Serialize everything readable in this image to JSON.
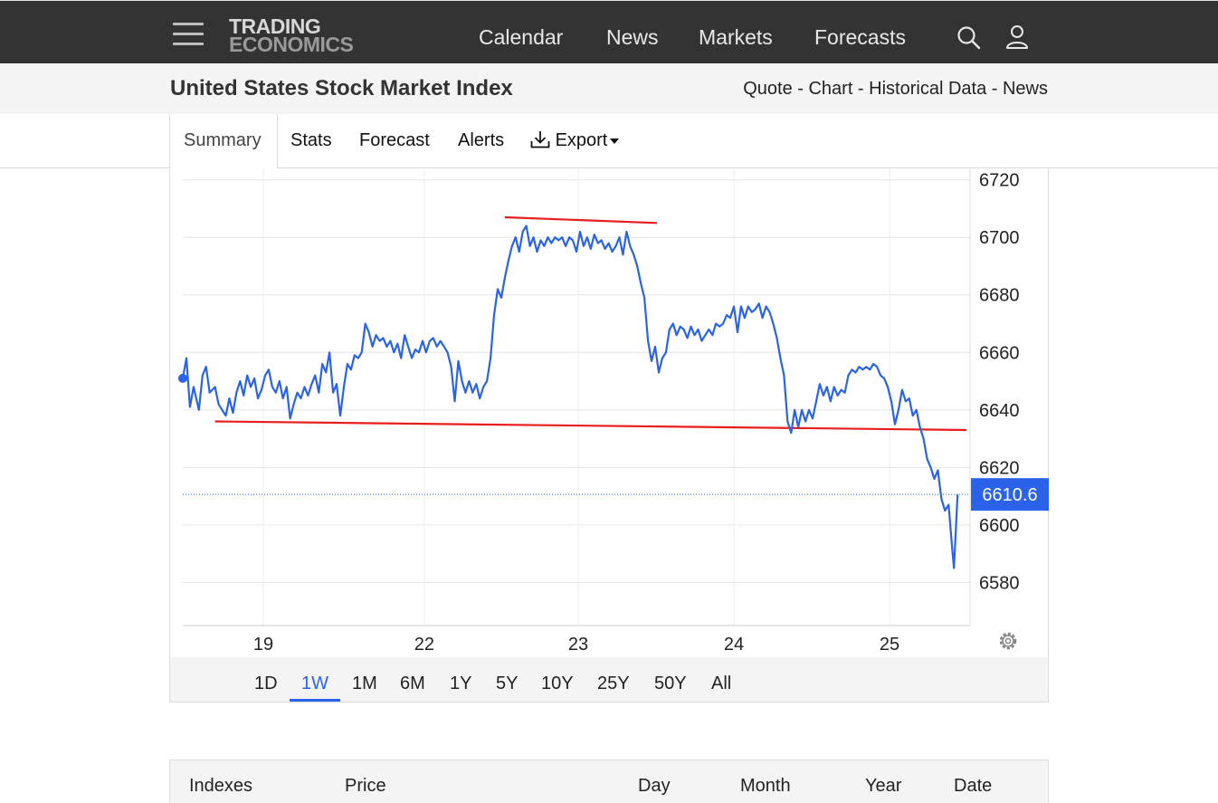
{
  "header": {
    "logo_line1": "TRADING",
    "logo_line2": "ECONOMICS",
    "nav": [
      "Calendar",
      "News",
      "Markets",
      "Forecasts"
    ]
  },
  "subheader": {
    "title": "United States Stock Market Index",
    "links": [
      "Quote",
      "Chart",
      "Historical Data",
      "News"
    ],
    "separator": " - "
  },
  "tabs": {
    "active": "Summary",
    "items": [
      "Stats",
      "Forecast",
      "Alerts"
    ],
    "export": "Export"
  },
  "ranges": {
    "items": [
      "1D",
      "1W",
      "1M",
      "6M",
      "1Y",
      "5Y",
      "10Y",
      "25Y",
      "50Y",
      "All"
    ],
    "active": "1W"
  },
  "table": {
    "headers": [
      "Indexes",
      "Price",
      "Day",
      "Month",
      "Year",
      "Date"
    ]
  },
  "colors": {
    "line": "#2a62ea",
    "trendline": "#e81e1e",
    "price_tag": "#2a62ea"
  },
  "chart_data": {
    "type": "line",
    "x_ticks": [
      "19",
      "22",
      "23",
      "24",
      "25"
    ],
    "y_ticks": [
      6720,
      6700,
      6680,
      6660,
      6640,
      6620,
      6600,
      6580
    ],
    "ylim": [
      6565,
      6724
    ],
    "grid": true,
    "current_price": "6610.6",
    "current_value": 6610.6,
    "series": [
      {
        "points": [
          [
            0.0,
            6651
          ],
          [
            0.2,
            6658
          ],
          [
            0.4,
            6641
          ],
          [
            0.6,
            6648
          ],
          [
            0.9,
            6640
          ],
          [
            1.1,
            6652
          ],
          [
            1.3,
            6655
          ],
          [
            1.5,
            6646
          ],
          [
            1.8,
            6648
          ],
          [
            2.0,
            6642
          ],
          [
            2.2,
            6640
          ],
          [
            2.4,
            6638
          ],
          [
            2.6,
            6644
          ],
          [
            2.8,
            6639
          ],
          [
            3.0,
            6646
          ],
          [
            3.2,
            6650
          ],
          [
            3.4,
            6645
          ],
          [
            3.6,
            6652
          ],
          [
            3.8,
            6648
          ],
          [
            4.0,
            6651
          ],
          [
            4.2,
            6644
          ],
          [
            4.4,
            6647
          ],
          [
            4.6,
            6652
          ],
          [
            4.8,
            6654
          ],
          [
            5.0,
            6648
          ],
          [
            5.2,
            6646
          ],
          [
            5.4,
            6650
          ],
          [
            5.6,
            6644
          ],
          [
            5.8,
            6648
          ],
          [
            6.0,
            6637
          ],
          [
            6.2,
            6642
          ],
          [
            6.4,
            6646
          ],
          [
            6.6,
            6644
          ],
          [
            6.8,
            6648
          ],
          [
            7.0,
            6645
          ],
          [
            7.2,
            6649
          ],
          [
            7.4,
            6652
          ],
          [
            7.6,
            6646
          ],
          [
            7.8,
            6656
          ],
          [
            8.0,
            6653
          ],
          [
            8.2,
            6660
          ],
          [
            8.4,
            6646
          ],
          [
            8.6,
            6649
          ],
          [
            8.8,
            6638
          ],
          [
            9.0,
            6648
          ],
          [
            9.2,
            6656
          ],
          [
            9.4,
            6654
          ],
          [
            9.6,
            6659
          ],
          [
            9.8,
            6658
          ],
          [
            10.0,
            6660
          ],
          [
            10.2,
            6670
          ],
          [
            10.4,
            6667
          ],
          [
            10.6,
            6662
          ],
          [
            10.8,
            6666
          ],
          [
            11.0,
            6664
          ],
          [
            11.2,
            6665
          ],
          [
            11.4,
            6662
          ],
          [
            11.6,
            6664
          ],
          [
            11.8,
            6660
          ],
          [
            12.0,
            6663
          ],
          [
            12.2,
            6658
          ],
          [
            12.4,
            6666
          ],
          [
            12.6,
            6662
          ],
          [
            12.8,
            6658
          ],
          [
            13.0,
            6661
          ],
          [
            13.2,
            6660
          ],
          [
            13.4,
            6664
          ],
          [
            13.6,
            6660
          ],
          [
            13.8,
            6664
          ],
          [
            14.0,
            6665
          ],
          [
            14.2,
            6662
          ],
          [
            14.4,
            6664
          ],
          [
            14.6,
            6662
          ],
          [
            14.8,
            6660
          ],
          [
            15.0,
            6655
          ],
          [
            15.2,
            6643
          ],
          [
            15.4,
            6657
          ],
          [
            15.6,
            6650
          ],
          [
            15.8,
            6646
          ],
          [
            16.0,
            6650
          ],
          [
            16.2,
            6646
          ],
          [
            16.4,
            6649
          ],
          [
            16.6,
            6644
          ],
          [
            16.8,
            6648
          ],
          [
            17.0,
            6650
          ],
          [
            17.2,
            6658
          ],
          [
            17.4,
            6673
          ],
          [
            17.6,
            6682
          ],
          [
            17.8,
            6679
          ],
          [
            18.0,
            6686
          ],
          [
            18.2,
            6692
          ],
          [
            18.4,
            6697
          ],
          [
            18.6,
            6700
          ],
          [
            18.8,
            6695
          ],
          [
            19.0,
            6702
          ],
          [
            19.2,
            6704
          ],
          [
            19.4,
            6697
          ],
          [
            19.6,
            6700
          ],
          [
            19.8,
            6695
          ],
          [
            20.0,
            6699
          ],
          [
            20.2,
            6697
          ],
          [
            20.4,
            6700
          ],
          [
            20.6,
            6698
          ],
          [
            20.8,
            6700
          ],
          [
            21.0,
            6699
          ],
          [
            21.2,
            6700
          ],
          [
            21.4,
            6697
          ],
          [
            21.6,
            6700
          ],
          [
            21.8,
            6699
          ],
          [
            22.0,
            6695
          ],
          [
            22.2,
            6702
          ],
          [
            22.4,
            6697
          ],
          [
            22.6,
            6700
          ],
          [
            22.8,
            6696
          ],
          [
            23.0,
            6701
          ],
          [
            23.2,
            6698
          ],
          [
            23.4,
            6699
          ],
          [
            23.6,
            6696
          ],
          [
            23.8,
            6698
          ],
          [
            24.0,
            6695
          ],
          [
            24.2,
            6697
          ],
          [
            24.4,
            6700
          ],
          [
            24.6,
            6694
          ],
          [
            24.8,
            6702
          ],
          [
            25.0,
            6697
          ],
          [
            25.2,
            6694
          ],
          [
            25.4,
            6690
          ],
          [
            25.6,
            6684
          ],
          [
            25.8,
            6679
          ],
          [
            26.0,
            6664
          ],
          [
            26.2,
            6657
          ],
          [
            26.4,
            6662
          ],
          [
            26.6,
            6653
          ],
          [
            26.8,
            6658
          ],
          [
            27.0,
            6660
          ],
          [
            27.2,
            6668
          ],
          [
            27.4,
            6670
          ],
          [
            27.6,
            6666
          ],
          [
            27.8,
            6669
          ],
          [
            28.0,
            6668
          ],
          [
            28.2,
            6665
          ],
          [
            28.4,
            6669
          ],
          [
            28.6,
            6666
          ],
          [
            28.8,
            6668
          ],
          [
            29.0,
            6664
          ],
          [
            29.2,
            6666
          ],
          [
            29.4,
            6668
          ],
          [
            29.6,
            6666
          ],
          [
            29.8,
            6670
          ],
          [
            30.0,
            6669
          ],
          [
            30.2,
            6670
          ],
          [
            30.4,
            6673
          ],
          [
            30.6,
            6672
          ],
          [
            30.8,
            6676
          ],
          [
            31.0,
            6667
          ],
          [
            31.2,
            6676
          ],
          [
            31.4,
            6672
          ],
          [
            31.6,
            6676
          ],
          [
            31.8,
            6674
          ],
          [
            32.0,
            6675
          ],
          [
            32.2,
            6677
          ],
          [
            32.4,
            6672
          ],
          [
            32.6,
            6676
          ],
          [
            32.8,
            6674
          ],
          [
            33.0,
            6670
          ],
          [
            33.2,
            6665
          ],
          [
            33.4,
            6658
          ],
          [
            33.6,
            6652
          ],
          [
            33.8,
            6636
          ],
          [
            34.0,
            6632
          ],
          [
            34.2,
            6640
          ],
          [
            34.4,
            6634
          ],
          [
            34.6,
            6640
          ],
          [
            34.8,
            6636
          ],
          [
            35.0,
            6640
          ],
          [
            35.2,
            6637
          ],
          [
            35.4,
            6643
          ],
          [
            35.6,
            6649
          ],
          [
            35.8,
            6645
          ],
          [
            36.0,
            6648
          ],
          [
            36.2,
            6643
          ],
          [
            36.4,
            6648
          ],
          [
            36.6,
            6645
          ],
          [
            36.8,
            6647
          ],
          [
            37.0,
            6646
          ],
          [
            37.2,
            6652
          ],
          [
            37.4,
            6654
          ],
          [
            37.6,
            6653
          ],
          [
            37.8,
            6655
          ],
          [
            38.0,
            6654
          ],
          [
            38.2,
            6655
          ],
          [
            38.4,
            6654
          ],
          [
            38.6,
            6656
          ],
          [
            38.8,
            6655
          ],
          [
            39.0,
            6652
          ],
          [
            39.2,
            6651
          ],
          [
            39.4,
            6648
          ],
          [
            39.6,
            6643
          ],
          [
            39.8,
            6635
          ],
          [
            40.0,
            6640
          ],
          [
            40.2,
            6647
          ],
          [
            40.4,
            6643
          ],
          [
            40.6,
            6644
          ],
          [
            40.8,
            6638
          ],
          [
            41.0,
            6640
          ],
          [
            41.2,
            6634
          ],
          [
            41.4,
            6630
          ],
          [
            41.6,
            6623
          ],
          [
            41.8,
            6620
          ],
          [
            42.0,
            6616
          ],
          [
            42.2,
            6619
          ],
          [
            42.4,
            6609
          ],
          [
            42.6,
            6605
          ],
          [
            42.8,
            6607
          ],
          [
            43.0,
            6592
          ],
          [
            43.1,
            6585
          ],
          [
            43.3,
            6610.6
          ]
        ]
      },
      {
        "style": "trendline",
        "points": [
          [
            1.8,
            6636
          ],
          [
            43.8,
            6633
          ]
        ]
      },
      {
        "style": "trendline",
        "points": [
          [
            18.0,
            6707
          ],
          [
            26.5,
            6705
          ]
        ]
      }
    ]
  }
}
